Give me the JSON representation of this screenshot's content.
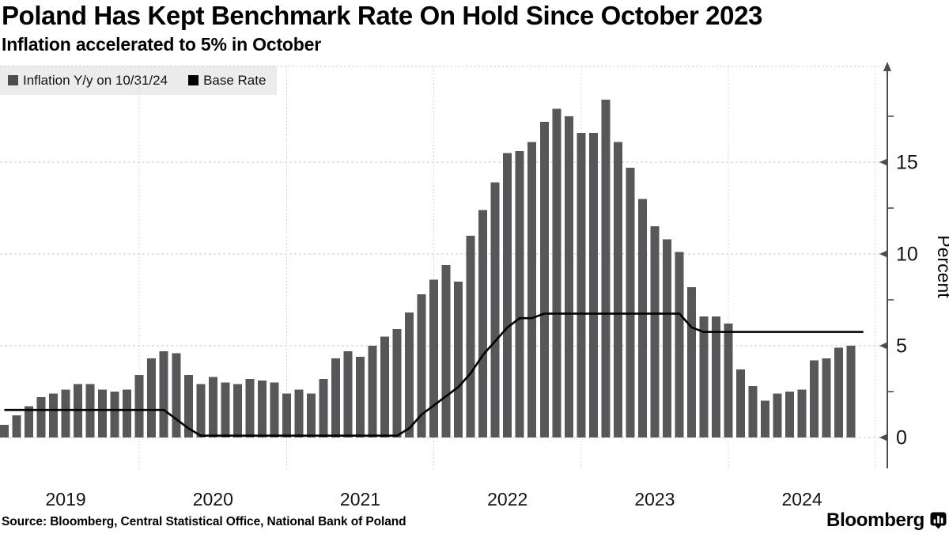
{
  "header": {
    "title": "Poland Has Kept Benchmark Rate On Hold Since October 2023",
    "subtitle": "Inflation accelerated to 5% in October"
  },
  "legend": {
    "position": "top-left",
    "items": [
      {
        "label": "Inflation Y/y on 10/31/24",
        "color": "#4d4d4f",
        "marker": "square"
      },
      {
        "label": "Base Rate",
        "color": "#000000",
        "marker": "square"
      }
    ]
  },
  "chart_data": {
    "type": "combo",
    "title": "Poland Has Kept Benchmark Rate On Hold Since October 2023",
    "subtitle": "Inflation accelerated to 5% in October",
    "xlabel": "",
    "ylabel": "Percent",
    "x_year_labels": [
      "2019",
      "2020",
      "2021",
      "2022",
      "2023",
      "2024"
    ],
    "yticks": [
      "0",
      "5",
      "10",
      "15"
    ],
    "yticks_minor": [
      2.5,
      7.5,
      12.5,
      17.5
    ],
    "ylim": [
      0,
      20.2
    ],
    "grid": "dotted",
    "series": [
      {
        "name": "Inflation Y/y on 10/31/24",
        "type": "bar",
        "color": "#575759",
        "start_month": "2019-01",
        "end_month": "2024-10",
        "frequency": "monthly",
        "values": [
          0.7,
          1.2,
          1.7,
          2.2,
          2.4,
          2.6,
          2.9,
          2.9,
          2.6,
          2.5,
          2.6,
          3.4,
          4.3,
          4.7,
          4.6,
          3.4,
          2.9,
          3.3,
          3.0,
          2.9,
          3.2,
          3.1,
          3.0,
          2.4,
          2.6,
          2.4,
          3.2,
          4.3,
          4.7,
          4.4,
          5.0,
          5.5,
          5.9,
          6.8,
          7.8,
          8.6,
          9.4,
          8.5,
          11.0,
          12.4,
          13.9,
          15.5,
          15.6,
          16.1,
          17.2,
          17.9,
          17.5,
          16.6,
          16.6,
          18.4,
          16.1,
          14.7,
          13.0,
          11.5,
          10.8,
          10.1,
          8.2,
          6.6,
          6.6,
          6.2,
          3.7,
          2.8,
          2.0,
          2.4,
          2.5,
          2.6,
          4.2,
          4.3,
          4.9,
          5.0
        ]
      },
      {
        "name": "Base Rate",
        "type": "line",
        "color": "#000000",
        "start_month": "2019-01",
        "end_month": "2024-11",
        "frequency": "monthly",
        "values": [
          1.5,
          1.5,
          1.5,
          1.5,
          1.5,
          1.5,
          1.5,
          1.5,
          1.5,
          1.5,
          1.5,
          1.5,
          1.5,
          1.5,
          1.0,
          0.5,
          0.1,
          0.1,
          0.1,
          0.1,
          0.1,
          0.1,
          0.1,
          0.1,
          0.1,
          0.1,
          0.1,
          0.1,
          0.1,
          0.1,
          0.1,
          0.1,
          0.1,
          0.5,
          1.25,
          1.75,
          2.25,
          2.75,
          3.5,
          4.5,
          5.25,
          6.0,
          6.5,
          6.5,
          6.75,
          6.75,
          6.75,
          6.75,
          6.75,
          6.75,
          6.75,
          6.75,
          6.75,
          6.75,
          6.75,
          6.75,
          6.0,
          5.75,
          5.75,
          5.75,
          5.75,
          5.75,
          5.75,
          5.75,
          5.75,
          5.75,
          5.75,
          5.75,
          5.75,
          5.75,
          5.75
        ]
      }
    ]
  },
  "footer": {
    "source": "Source: Bloomberg, Central Statistical Office, National Bank of Poland",
    "brand": "Bloomberg"
  },
  "colors": {
    "background": "#ffffff",
    "bar": "#575759",
    "line": "#000000",
    "grid": "#c9c9c9",
    "axis": "#4d4d4f",
    "legend_background": "#ececec",
    "text": "#141414"
  }
}
